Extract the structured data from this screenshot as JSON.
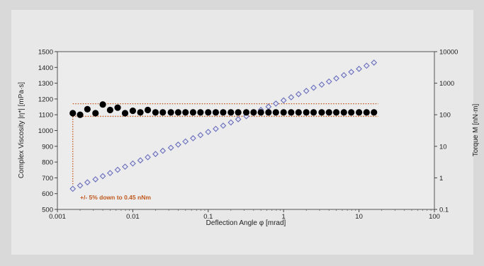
{
  "chart_data": {
    "type": "scatter",
    "xlabel": "Deflection Angle φ [mrad]",
    "ylabel_left": "Complex Viscosity |η*| [mPa·s]",
    "ylabel_right": "Torque M [nN·m]",
    "x_scale": "log",
    "x_range": [
      0.001,
      100
    ],
    "y_left_range": [
      500,
      1500
    ],
    "y_right_scale": "log",
    "y_right_range": [
      0.1,
      10000
    ],
    "x_ticks": [
      "0.001",
      "0.01",
      "0.1",
      "1",
      "10",
      "100"
    ],
    "y_left_ticks": [
      "500",
      "600",
      "700",
      "800",
      "900",
      "1000",
      "1100",
      "1200",
      "1300",
      "1400",
      "1500"
    ],
    "y_right_ticks": [
      "0.1",
      "1",
      "10",
      "100",
      "1000",
      "10000"
    ],
    "tolerance_band": {
      "lower": 1090,
      "upper": 1170,
      "x_start": 0.0016,
      "x_end": 18
    },
    "annotation": "+/- 5% down to 0.45 nNm",
    "colors": {
      "viscosity": "#000000",
      "torque": "#6a6fb8",
      "band": "#c0581e"
    },
    "series": [
      {
        "marker": "filled-circle",
        "axis": "left",
        "x": [
          0.0016,
          0.002,
          0.0025,
          0.0032,
          0.004,
          0.005,
          0.0063,
          0.0079,
          0.01,
          0.0126,
          0.0158,
          0.02,
          0.025,
          0.032,
          0.04,
          0.05,
          0.063,
          0.079,
          0.1,
          0.126,
          0.158,
          0.2,
          0.25,
          0.32,
          0.4,
          0.5,
          0.63,
          0.79,
          1,
          1.26,
          1.58,
          2,
          2.5,
          3.2,
          4,
          5,
          6.3,
          7.9,
          10,
          12.6,
          15.8
        ],
        "y": [
          1110,
          1100,
          1135,
          1110,
          1165,
          1130,
          1145,
          1110,
          1125,
          1115,
          1130,
          1115,
          1115,
          1115,
          1115,
          1115,
          1115,
          1115,
          1115,
          1115,
          1115,
          1115,
          1115,
          1115,
          1115,
          1115,
          1115,
          1115,
          1115,
          1115,
          1115,
          1115,
          1115,
          1115,
          1115,
          1115,
          1115,
          1115,
          1115,
          1115,
          1115
        ]
      },
      {
        "marker": "open-diamond",
        "axis": "right",
        "x": [
          0.0016,
          0.002,
          0.0025,
          0.0032,
          0.004,
          0.005,
          0.0063,
          0.0079,
          0.01,
          0.0126,
          0.0158,
          0.02,
          0.025,
          0.032,
          0.04,
          0.05,
          0.063,
          0.079,
          0.1,
          0.126,
          0.158,
          0.2,
          0.25,
          0.32,
          0.4,
          0.5,
          0.63,
          0.79,
          1,
          1.26,
          1.58,
          2,
          2.5,
          3.2,
          4,
          5,
          6.3,
          7.9,
          10,
          12.6,
          15.8
        ],
        "y": [
          0.45,
          0.57,
          0.72,
          0.9,
          1.13,
          1.42,
          1.8,
          2.26,
          2.85,
          3.58,
          4.5,
          5.7,
          7.2,
          9,
          11.3,
          14.2,
          18,
          22.6,
          28.5,
          35.8,
          45,
          57,
          72,
          90,
          113,
          142,
          180,
          226,
          285,
          358,
          450,
          570,
          720,
          900,
          1130,
          1420,
          1800,
          2260,
          2850,
          3580,
          4500
        ]
      }
    ]
  }
}
